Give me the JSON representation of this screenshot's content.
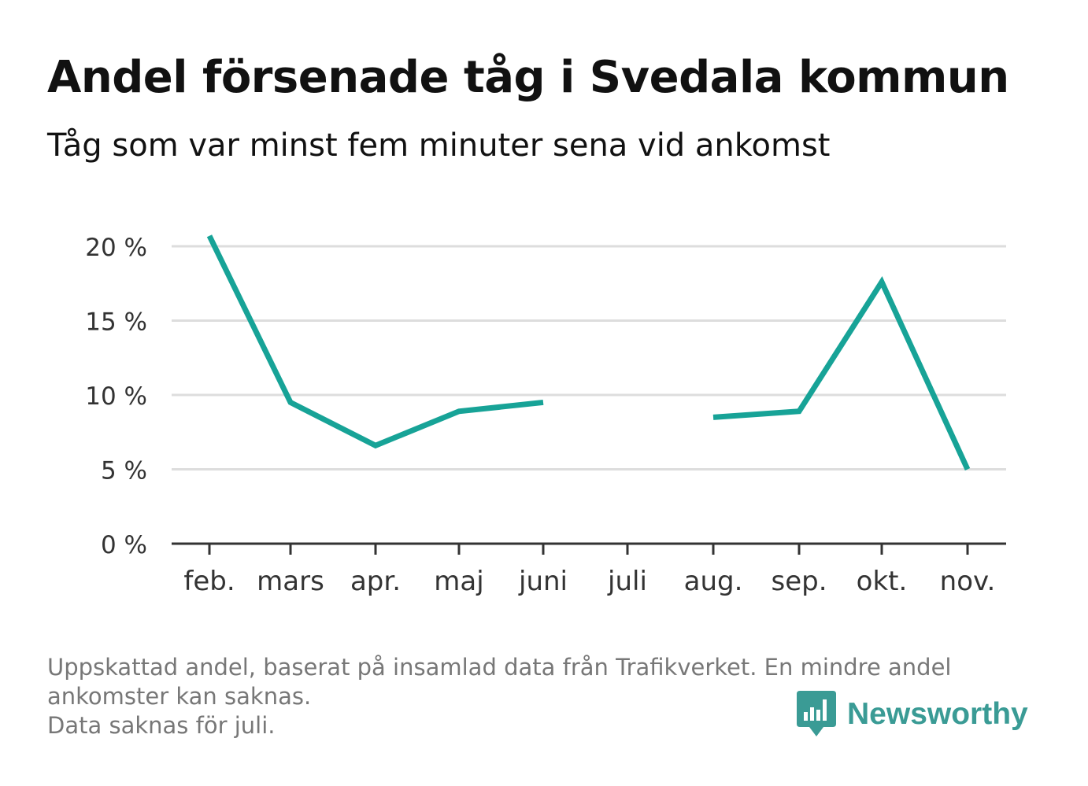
{
  "header": {
    "title": "Andel försenade tåg i Svedala kommun",
    "subtitle": "Tåg som var minst fem minuter sena vid ankomst"
  },
  "footer": {
    "note_line1": "Uppskattad andel, baserat på insamlad data från Trafikverket. En mindre andel",
    "note_line2": "ankomster kan saknas.",
    "note_line3": "Data saknas för juli.",
    "brand": "Newsworthy",
    "brand_icon": "newsworthy-logo-icon"
  },
  "colors": {
    "line": "#17a397",
    "grid": "#dddddd",
    "axis": "#333333",
    "brand": "#3a9b95"
  },
  "chart_data": {
    "type": "line",
    "categories": [
      "feb.",
      "mars",
      "apr.",
      "maj",
      "juni",
      "juli",
      "aug.",
      "sep.",
      "okt.",
      "nov."
    ],
    "series": [
      {
        "values": [
          20.7,
          9.5,
          6.6,
          8.9,
          9.5,
          null,
          8.5,
          8.9,
          17.6,
          5.0
        ]
      }
    ],
    "yticks": [
      0,
      5,
      10,
      15,
      20
    ],
    "ytick_labels": [
      "0 %",
      "5 %",
      "10 %",
      "15 %",
      "20 %"
    ],
    "ylim": [
      0,
      20
    ],
    "grid": true,
    "title": "Andel försenade tåg i Svedala kommun",
    "xlabel": "",
    "ylabel": ""
  }
}
